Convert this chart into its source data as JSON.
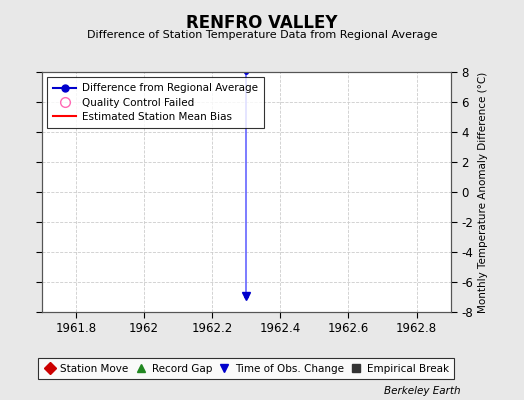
{
  "title": "RENFRO VALLEY",
  "subtitle": "Difference of Station Temperature Data from Regional Average",
  "ylabel_right": "Monthly Temperature Anomaly Difference (°C)",
  "xlim": [
    1961.7,
    1962.9
  ],
  "ylim": [
    -8,
    8
  ],
  "yticks": [
    -8,
    -6,
    -4,
    -2,
    0,
    2,
    4,
    6,
    8
  ],
  "xticks": [
    1961.8,
    1962.0,
    1962.2,
    1962.4,
    1962.6,
    1962.8
  ],
  "xticklabels": [
    "1961.8",
    "1962",
    "1962.2",
    "1962.4",
    "1962.6",
    "1962.8"
  ],
  "background_color": "#e8e8e8",
  "plot_bg_color": "#ffffff",
  "grid_color": "#cccccc",
  "line_x": [
    1962.3,
    1962.3
  ],
  "line_y": [
    8.0,
    -6.9
  ],
  "line_color": "#6666ff",
  "line_width": 1.2,
  "marker_color": "#0000cc",
  "watermark": "Berkeley Earth",
  "legend1_entries": [
    {
      "label": "Difference from Regional Average",
      "color": "#0000cc",
      "linestyle": "-",
      "marker": "o"
    },
    {
      "label": "Quality Control Failed",
      "color": "#ff69b4",
      "linestyle": "none",
      "marker": "o"
    },
    {
      "label": "Estimated Station Mean Bias",
      "color": "#ff0000",
      "linestyle": "-",
      "marker": "none"
    }
  ],
  "legend2_entries": [
    {
      "label": "Station Move",
      "color": "#cc0000",
      "marker": "D"
    },
    {
      "label": "Record Gap",
      "color": "#228822",
      "marker": "^"
    },
    {
      "label": "Time of Obs. Change",
      "color": "#0000cc",
      "marker": "v"
    },
    {
      "label": "Empirical Break",
      "color": "#333333",
      "marker": "s"
    }
  ],
  "obs_change_x": 1962.3,
  "obs_change_y": -6.9
}
